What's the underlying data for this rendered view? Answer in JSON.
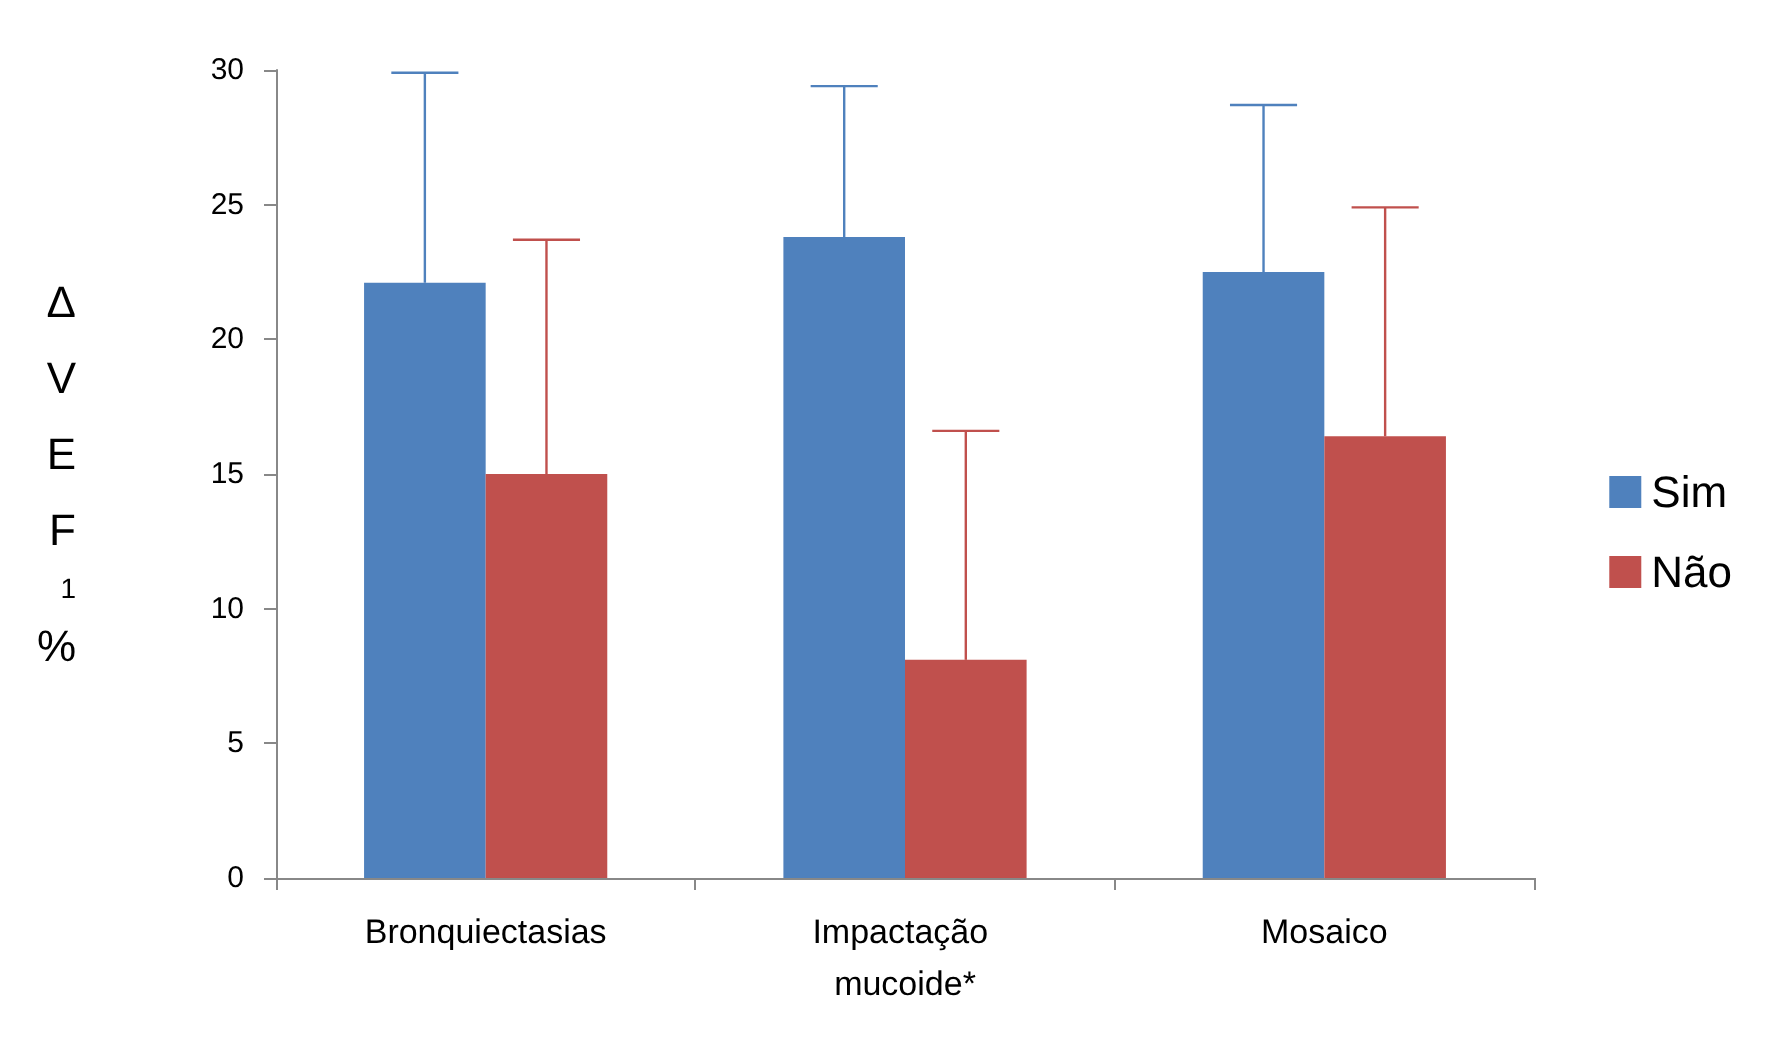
{
  "chart_data": {
    "type": "bar",
    "ylabel": "ΔVEF$_{1}$%",
    "categories": [
      "Bronquiectasias",
      "Impactação mucoide*",
      "Mosaico"
    ],
    "series": [
      {
        "name": "Sim",
        "color": "#4f81bd",
        "values": [
          22.1,
          23.8,
          22.5
        ],
        "errors": [
          [
            22.1,
            29.9
          ],
          [
            23.8,
            29.4
          ],
          [
            22.5,
            28.7
          ]
        ]
      },
      {
        "name": "Não",
        "color": "#c0504d",
        "values": [
          15.0,
          8.1,
          16.4
        ],
        "errors": [
          [
            15.0,
            23.7
          ],
          [
            8.1,
            16.6
          ],
          [
            16.4,
            24.9
          ]
        ]
      }
    ],
    "ylim": [
      0,
      30
    ],
    "yticks": [
      0,
      5,
      10,
      15,
      20,
      25,
      30
    ],
    "grid": false,
    "legend": "right"
  }
}
